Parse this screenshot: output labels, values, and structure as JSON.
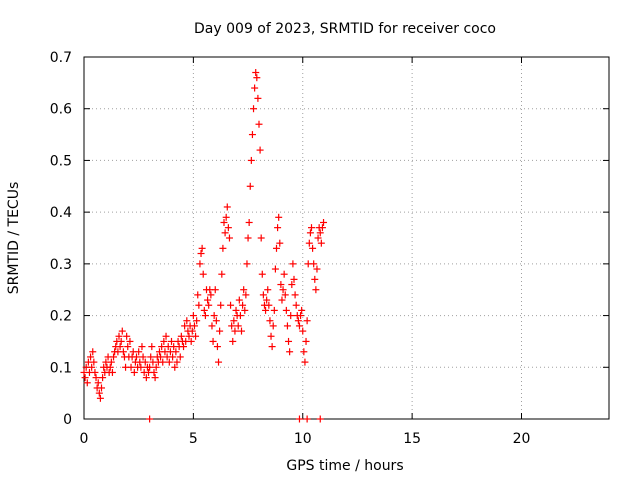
{
  "chart_data": {
    "type": "scatter",
    "title": "Day 009 of 2023, SRMTID for receiver coco",
    "xlabel": "GPS time / hours",
    "ylabel": "SRMTID / TECUs",
    "xlim": [
      0,
      24
    ],
    "ylim": [
      0,
      0.7
    ],
    "x_ticks": [
      0,
      5,
      10,
      15,
      20
    ],
    "x_tick_labels": [
      "0",
      "5",
      "10",
      "15",
      "20"
    ],
    "y_ticks": [
      0,
      0.1,
      0.2,
      0.3,
      0.4,
      0.5,
      0.6,
      0.7
    ],
    "y_tick_labels": [
      "0",
      "0.1",
      "0.2",
      "0.3",
      "0.4",
      "0.5",
      "0.6",
      "0.7"
    ],
    "grid": true,
    "marker": "+",
    "marker_color": "#ff0000",
    "series": [
      {
        "name": "SRMTID",
        "points": [
          [
            0.0,
            0.09
          ],
          [
            0.05,
            0.08
          ],
          [
            0.1,
            0.1
          ],
          [
            0.15,
            0.07
          ],
          [
            0.2,
            0.11
          ],
          [
            0.25,
            0.09
          ],
          [
            0.3,
            0.12
          ],
          [
            0.35,
            0.1
          ],
          [
            0.4,
            0.13
          ],
          [
            0.45,
            0.11
          ],
          [
            0.5,
            0.09
          ],
          [
            0.55,
            0.08
          ],
          [
            0.6,
            0.06
          ],
          [
            0.65,
            0.07
          ],
          [
            0.7,
            0.05
          ],
          [
            0.75,
            0.04
          ],
          [
            0.8,
            0.06
          ],
          [
            0.85,
            0.08
          ],
          [
            0.9,
            0.1
          ],
          [
            0.95,
            0.09
          ],
          [
            1.0,
            0.11
          ],
          [
            1.05,
            0.1
          ],
          [
            1.1,
            0.12
          ],
          [
            1.15,
            0.09
          ],
          [
            1.2,
            0.1
          ],
          [
            1.25,
            0.11
          ],
          [
            1.3,
            0.09
          ],
          [
            1.35,
            0.12
          ],
          [
            1.4,
            0.13
          ],
          [
            1.45,
            0.14
          ],
          [
            1.5,
            0.15
          ],
          [
            1.55,
            0.13
          ],
          [
            1.6,
            0.16
          ],
          [
            1.65,
            0.14
          ],
          [
            1.7,
            0.15
          ],
          [
            1.75,
            0.17
          ],
          [
            1.8,
            0.13
          ],
          [
            1.85,
            0.12
          ],
          [
            1.9,
            0.1
          ],
          [
            1.95,
            0.16
          ],
          [
            2.0,
            0.14
          ],
          [
            2.05,
            0.12
          ],
          [
            2.1,
            0.15
          ],
          [
            2.15,
            0.1
          ],
          [
            2.2,
            0.12
          ],
          [
            2.25,
            0.13
          ],
          [
            2.3,
            0.09
          ],
          [
            2.35,
            0.11
          ],
          [
            2.4,
            0.12
          ],
          [
            2.45,
            0.1
          ],
          [
            2.5,
            0.13
          ],
          [
            2.55,
            0.11
          ],
          [
            2.6,
            0.1
          ],
          [
            2.65,
            0.14
          ],
          [
            2.7,
            0.12
          ],
          [
            2.75,
            0.09
          ],
          [
            2.8,
            0.11
          ],
          [
            2.85,
            0.08
          ],
          [
            2.9,
            0.1
          ],
          [
            2.95,
            0.09
          ],
          [
            3.0,
            0.1
          ],
          [
            3.05,
            0.12
          ],
          [
            3.1,
            0.14
          ],
          [
            3.15,
            0.11
          ],
          [
            3.2,
            0.09
          ],
          [
            3.25,
            0.08
          ],
          [
            3.3,
            0.1
          ],
          [
            3.35,
            0.12
          ],
          [
            3.4,
            0.11
          ],
          [
            3.45,
            0.13
          ],
          [
            3.5,
            0.12
          ],
          [
            3.55,
            0.14
          ],
          [
            3.6,
            0.11
          ],
          [
            3.65,
            0.15
          ],
          [
            3.7,
            0.13
          ],
          [
            3.75,
            0.16
          ],
          [
            3.8,
            0.12
          ],
          [
            3.85,
            0.14
          ],
          [
            3.9,
            0.11
          ],
          [
            3.95,
            0.13
          ],
          [
            4.0,
            0.15
          ],
          [
            4.05,
            0.12
          ],
          [
            4.1,
            0.14
          ],
          [
            4.15,
            0.1
          ],
          [
            4.2,
            0.13
          ],
          [
            4.25,
            0.11
          ],
          [
            4.3,
            0.15
          ],
          [
            4.35,
            0.14
          ],
          [
            4.4,
            0.12
          ],
          [
            4.45,
            0.16
          ],
          [
            4.5,
            0.15
          ],
          [
            4.55,
            0.14
          ],
          [
            4.6,
            0.18
          ],
          [
            4.65,
            0.15
          ],
          [
            4.7,
            0.19
          ],
          [
            4.75,
            0.17
          ],
          [
            4.8,
            0.16
          ],
          [
            4.85,
            0.18
          ],
          [
            4.9,
            0.15
          ],
          [
            4.95,
            0.17
          ],
          [
            5.0,
            0.2
          ],
          [
            5.05,
            0.18
          ],
          [
            5.1,
            0.16
          ],
          [
            5.15,
            0.19
          ],
          [
            5.2,
            0.24
          ],
          [
            5.25,
            0.22
          ],
          [
            5.3,
            0.3
          ],
          [
            5.35,
            0.32
          ],
          [
            5.4,
            0.33
          ],
          [
            5.45,
            0.28
          ],
          [
            5.5,
            0.21
          ],
          [
            5.55,
            0.2
          ],
          [
            5.6,
            0.25
          ],
          [
            5.65,
            0.23
          ],
          [
            5.7,
            0.22
          ],
          [
            5.75,
            0.25
          ],
          [
            5.8,
            0.24
          ],
          [
            5.85,
            0.18
          ],
          [
            5.9,
            0.15
          ],
          [
            5.95,
            0.2
          ],
          [
            6.0,
            0.25
          ],
          [
            6.05,
            0.19
          ],
          [
            6.1,
            0.14
          ],
          [
            6.15,
            0.11
          ],
          [
            6.2,
            0.17
          ],
          [
            6.25,
            0.22
          ],
          [
            6.3,
            0.28
          ],
          [
            6.35,
            0.33
          ],
          [
            6.4,
            0.38
          ],
          [
            6.45,
            0.36
          ],
          [
            6.5,
            0.39
          ],
          [
            6.55,
            0.41
          ],
          [
            6.6,
            0.37
          ],
          [
            6.65,
            0.35
          ],
          [
            6.7,
            0.22
          ],
          [
            6.75,
            0.18
          ],
          [
            6.8,
            0.15
          ],
          [
            6.85,
            0.19
          ],
          [
            6.9,
            0.17
          ],
          [
            6.95,
            0.21
          ],
          [
            7.0,
            0.2
          ],
          [
            7.05,
            0.18
          ],
          [
            7.1,
            0.23
          ],
          [
            7.15,
            0.2
          ],
          [
            7.2,
            0.17
          ],
          [
            7.25,
            0.22
          ],
          [
            7.3,
            0.25
          ],
          [
            7.35,
            0.21
          ],
          [
            7.4,
            0.24
          ],
          [
            7.45,
            0.3
          ],
          [
            7.5,
            0.35
          ],
          [
            7.55,
            0.38
          ],
          [
            7.6,
            0.45
          ],
          [
            7.65,
            0.5
          ],
          [
            7.7,
            0.55
          ],
          [
            7.75,
            0.6
          ],
          [
            7.8,
            0.64
          ],
          [
            7.85,
            0.67
          ],
          [
            7.9,
            0.66
          ],
          [
            7.95,
            0.62
          ],
          [
            8.0,
            0.57
          ],
          [
            8.05,
            0.52
          ],
          [
            8.1,
            0.35
          ],
          [
            8.15,
            0.28
          ],
          [
            8.2,
            0.24
          ],
          [
            8.25,
            0.22
          ],
          [
            8.3,
            0.21
          ],
          [
            8.35,
            0.23
          ],
          [
            8.4,
            0.25
          ],
          [
            8.45,
            0.22
          ],
          [
            8.5,
            0.19
          ],
          [
            8.55,
            0.16
          ],
          [
            8.6,
            0.14
          ],
          [
            8.65,
            0.18
          ],
          [
            8.7,
            0.21
          ],
          [
            8.75,
            0.29
          ],
          [
            8.8,
            0.33
          ],
          [
            8.85,
            0.37
          ],
          [
            8.9,
            0.39
          ],
          [
            8.95,
            0.34
          ],
          [
            9.0,
            0.26
          ],
          [
            9.05,
            0.23
          ],
          [
            9.1,
            0.25
          ],
          [
            9.15,
            0.28
          ],
          [
            9.2,
            0.24
          ],
          [
            9.25,
            0.21
          ],
          [
            9.3,
            0.18
          ],
          [
            9.35,
            0.15
          ],
          [
            9.4,
            0.13
          ],
          [
            9.45,
            0.2
          ],
          [
            9.5,
            0.26
          ],
          [
            9.55,
            0.3
          ],
          [
            9.6,
            0.27
          ],
          [
            9.65,
            0.24
          ],
          [
            9.7,
            0.22
          ],
          [
            9.75,
            0.2
          ],
          [
            9.8,
            0.19
          ],
          [
            9.85,
            0.18
          ],
          [
            9.9,
            0.2
          ],
          [
            9.95,
            0.21
          ],
          [
            10.0,
            0.17
          ],
          [
            10.05,
            0.13
          ],
          [
            10.1,
            0.11
          ],
          [
            10.15,
            0.15
          ],
          [
            10.2,
            0.19
          ],
          [
            10.25,
            0.3
          ],
          [
            10.3,
            0.34
          ],
          [
            10.35,
            0.36
          ],
          [
            10.4,
            0.37
          ],
          [
            10.45,
            0.33
          ],
          [
            10.5,
            0.3
          ],
          [
            10.55,
            0.27
          ],
          [
            10.6,
            0.25
          ],
          [
            10.65,
            0.29
          ],
          [
            10.7,
            0.35
          ],
          [
            10.75,
            0.37
          ],
          [
            10.8,
            0.36
          ],
          [
            10.85,
            0.34
          ],
          [
            10.9,
            0.37
          ],
          [
            10.95,
            0.38
          ],
          [
            3.0,
            0.0
          ],
          [
            9.85,
            0.0
          ],
          [
            10.2,
            0.0
          ],
          [
            10.8,
            0.0
          ]
        ]
      }
    ]
  }
}
